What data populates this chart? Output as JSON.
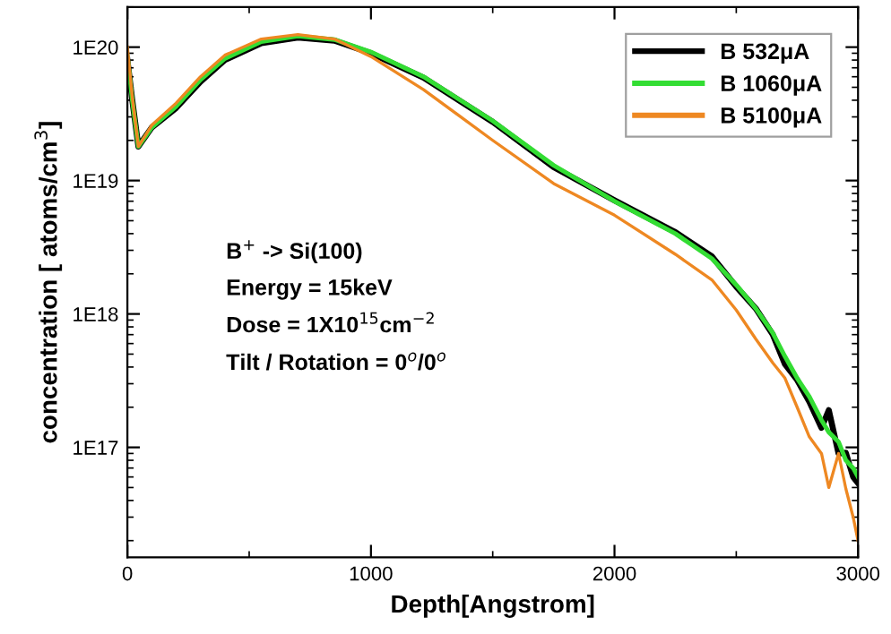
{
  "chart_data": {
    "type": "line",
    "xlabel": "Depth[Angstrom]",
    "ylabel": "concentration [ atoms/cm$^{3}$]",
    "log": "y",
    "xlim": [
      0,
      3000
    ],
    "xticks": [
      0,
      1000,
      2000,
      3000
    ],
    "ylim": [
      1.5e+16,
      2e+20
    ],
    "yticks": [
      {
        "value": 1e+17,
        "label": "1E17"
      },
      {
        "value": 1e+18,
        "label": "1E18"
      },
      {
        "value": 1e+19,
        "label": "1E19"
      },
      {
        "value": 1e+20,
        "label": "1E20"
      }
    ],
    "grid": false,
    "legend": "top right",
    "line_style": "solid",
    "marker": "none",
    "annotations": [
      "B$^{+}$ -> Si(100)",
      "Energy = 15keV",
      "Dose = 1X10$^{15}$cm$^{−2}$",
      "Tilt / Rotation = 0$^{o}$/0$^{o}$"
    ],
    "x": [
      0,
      20,
      45,
      100,
      200,
      300,
      400,
      550,
      700,
      850,
      1000,
      1216,
      1500,
      1750,
      2000,
      2250,
      2400,
      2500,
      2580,
      2650,
      2700,
      2750,
      2800,
      2850,
      2880,
      2920,
      2950,
      2980,
      3000
    ],
    "series": [
      {
        "name": "B 532μA",
        "color": "#000000",
        "values": [
          8e+19,
          4e+19,
          1.8e+19,
          2.5e+19,
          3.5e+19,
          5.5e+19,
          8e+19,
          1.07e+20,
          1.18e+20,
          1.12e+20,
          9e+19,
          5.9e+19,
          2.75e+19,
          1.26e+19,
          7.1e+18,
          4.1e+18,
          2.7e+18,
          1.6e+18,
          1.1e+18,
          7e+17,
          4.2e+17,
          3.2e+17,
          2.2e+17,
          1.4e+17,
          1.9e+17,
          9e+16,
          9.1e+16,
          6e+16,
          5.4e+16
        ]
      },
      {
        "name": "B 1060μA",
        "color": "#33dd33",
        "values": [
          8.5e+19,
          4e+19,
          1.8e+19,
          2.5e+19,
          3.6e+19,
          5.7e+19,
          8.2e+19,
          1.1e+20,
          1.21e+20,
          1.14e+20,
          9.2e+19,
          6e+19,
          2.8e+19,
          1.3e+19,
          7e+18,
          4e+18,
          2.6e+18,
          1.65e+18,
          1.1e+18,
          7.2e+17,
          4.8e+17,
          3.3e+17,
          2.4e+17,
          1.6e+17,
          1.3e+17,
          1.1e+17,
          8e+16,
          7e+16,
          6e+16
        ]
      },
      {
        "name": "B 5100μA",
        "color": "#ee8822",
        "values": [
          1e+20,
          4.2e+19,
          1.8e+19,
          2.6e+19,
          3.8e+19,
          6e+19,
          8.7e+19,
          1.15e+20,
          1.24e+20,
          1.15e+20,
          8.5e+19,
          4.8e+19,
          2e+19,
          9.5e+18,
          5.5e+18,
          2.8e+18,
          1.8e+18,
          1.07e+18,
          6.5e+17,
          4.3e+17,
          3.3e+17,
          2e+17,
          1.2e+17,
          9e+16,
          5e+16,
          9e+16,
          4.9e+16,
          3e+16,
          2e+16
        ]
      }
    ]
  }
}
